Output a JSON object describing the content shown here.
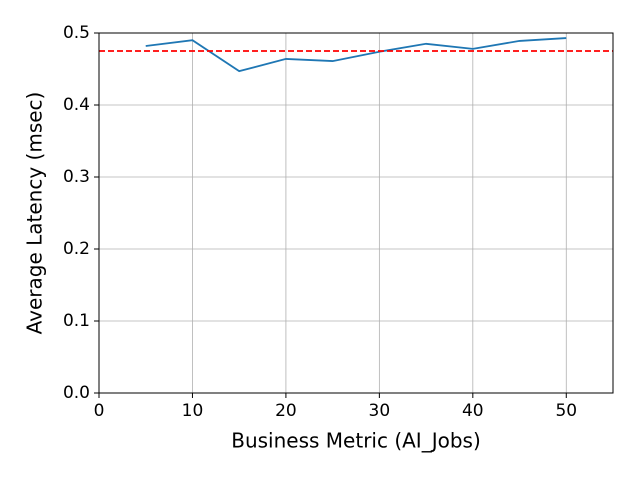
{
  "chart_data": {
    "type": "line",
    "x_label": "Business Metric (AI_Jobs)",
    "y_label": "Average Latency (msec)",
    "x": [
      5,
      10,
      15,
      20,
      25,
      30,
      35,
      40,
      45,
      50
    ],
    "series": [
      {
        "color": "#1f77b4",
        "values": [
          0.482,
          0.49,
          0.447,
          0.464,
          0.461,
          0.474,
          0.485,
          0.478,
          0.489,
          0.493
        ]
      }
    ],
    "reference_line": {
      "value": 0.475,
      "color": "#ff0000"
    },
    "xlim": [
      0,
      55
    ],
    "xticks": [
      0,
      10,
      20,
      30,
      40,
      50
    ],
    "ylim": [
      0,
      0.5
    ],
    "yticks": [
      {
        "value": 0,
        "label": "0.0"
      },
      0.1,
      0.2,
      0.3,
      0.4,
      0.5
    ],
    "grid": true
  }
}
